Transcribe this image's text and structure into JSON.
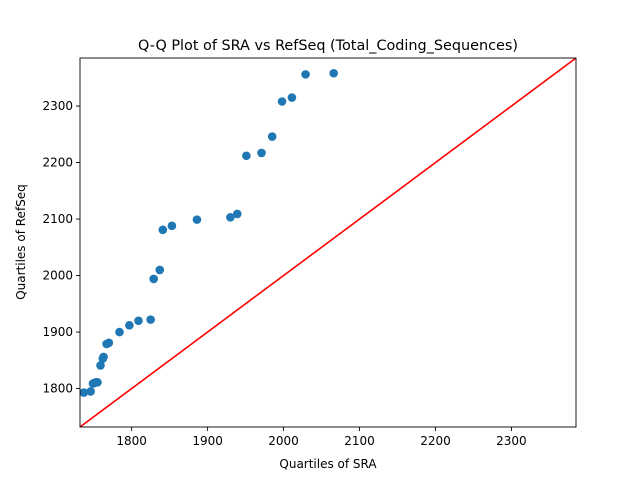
{
  "chart_data": {
    "type": "scatter",
    "title": "Q-Q Plot of SRA vs RefSeq (Total_Coding_Sequences)",
    "xlabel": "Quartiles of SRA",
    "ylabel": "Quartiles of RefSeq",
    "xlim": [
      1732,
      2385
    ],
    "ylim": [
      1732,
      2385
    ],
    "xticks": [
      1800,
      1900,
      2000,
      2100,
      2200,
      2300
    ],
    "yticks": [
      1800,
      1900,
      2000,
      2100,
      2200,
      2300
    ],
    "grid": false,
    "point_color": "#1f77b4",
    "reference_line": {
      "from": [
        1732,
        1732
      ],
      "to": [
        2385,
        2385
      ],
      "color": "#ff0000"
    },
    "series": [
      {
        "x": [
          1737,
          1746,
          1749,
          1751,
          1753,
          1755,
          1759,
          1762,
          1763,
          1767,
          1770,
          1784,
          1797,
          1809,
          1825,
          1829,
          1837,
          1841,
          1853,
          1886,
          1930,
          1939,
          1951,
          1971,
          1985,
          1998,
          2011,
          2029,
          2066
        ],
        "y": [
          1793,
          1795,
          1809,
          1810,
          1811,
          1811,
          1841,
          1853,
          1856,
          1879,
          1881,
          1900,
          1912,
          1920,
          1922,
          1994,
          2010,
          2081,
          2088,
          2099,
          2103,
          2109,
          2212,
          2217,
          2246,
          2308,
          2315,
          2356,
          2358
        ]
      }
    ]
  }
}
